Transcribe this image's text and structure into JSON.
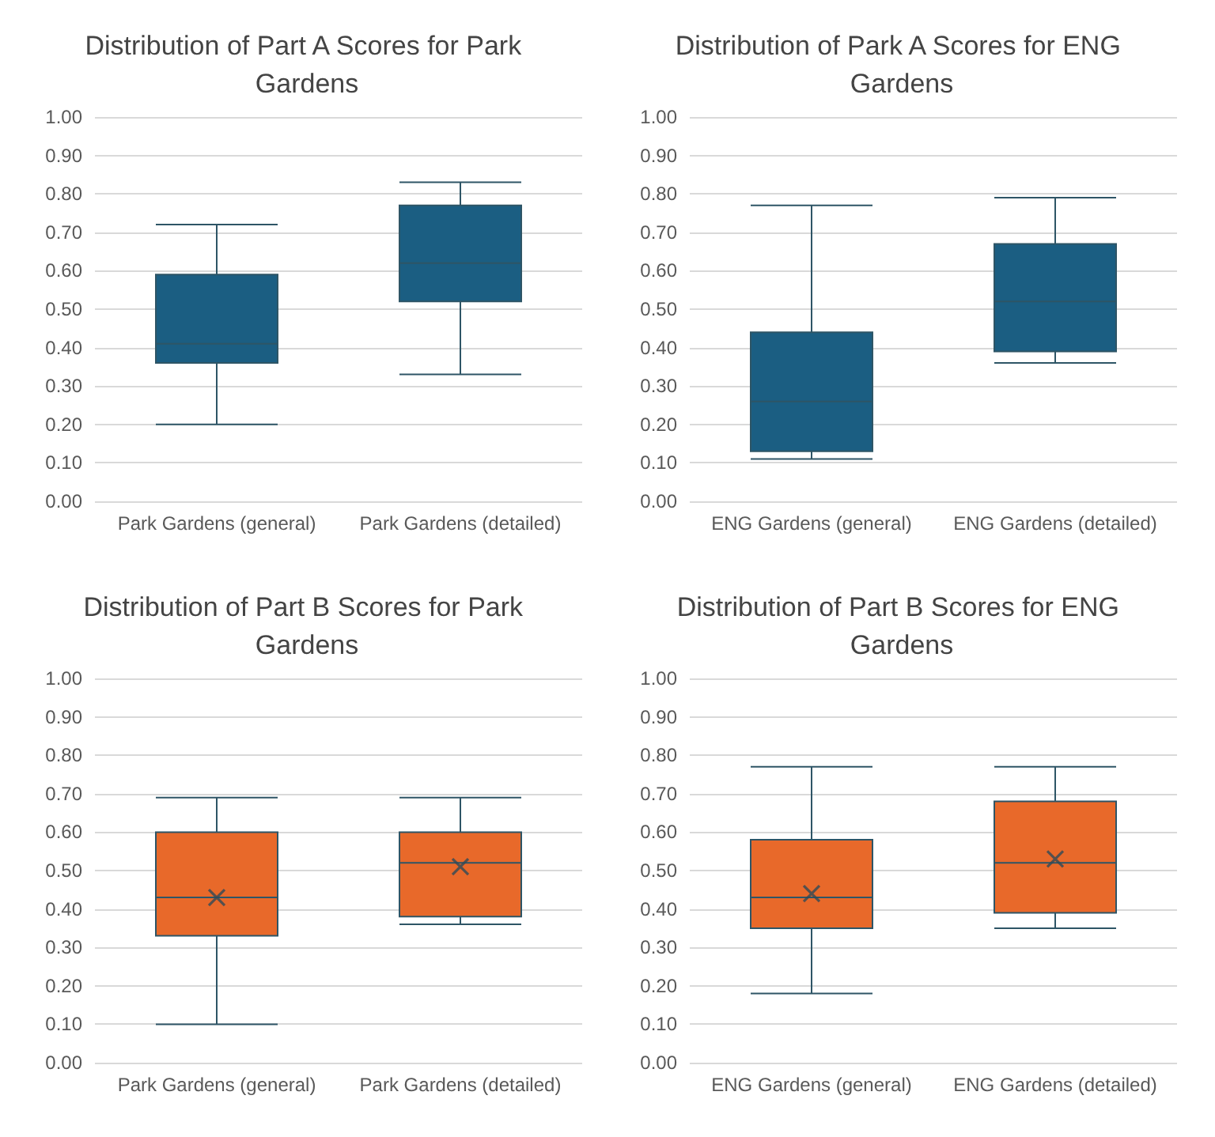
{
  "chart_data": [
    {
      "type": "box",
      "title": "Distribution of Part A Scores for Park Gardens",
      "categories": [
        "Park Gardens (general)",
        "Park Gardens (detailed)"
      ],
      "series": [
        {
          "color": "#1b5e82",
          "boxes": [
            {
              "low": 0.2,
              "q1": 0.36,
              "median": 0.41,
              "q3": 0.59,
              "high": 0.72
            },
            {
              "low": 0.33,
              "q1": 0.52,
              "median": 0.62,
              "q3": 0.77,
              "high": 0.83
            }
          ]
        }
      ],
      "ylim": [
        0,
        1
      ],
      "yticks": [
        {
          "value": 0,
          "label": "0.00"
        },
        {
          "value": 0.1,
          "label": "0.10"
        },
        {
          "value": 0.2,
          "label": "0.20"
        },
        {
          "value": 0.3,
          "label": "0.30"
        },
        {
          "value": 0.4,
          "label": "0.40"
        },
        {
          "value": 0.5,
          "label": "0.50"
        },
        {
          "value": 0.6,
          "label": "0.60"
        },
        {
          "value": 0.7,
          "label": "0.70"
        },
        {
          "value": 0.8,
          "label": "0.80"
        },
        {
          "value": 0.9,
          "label": "0.90"
        },
        {
          "value": 1,
          "label": "1.00"
        }
      ],
      "grid": "y"
    },
    {
      "type": "box",
      "title": "Distribution of Park A Scores for ENG Gardens",
      "categories": [
        "ENG Gardens (general)",
        "ENG Gardens (detailed)"
      ],
      "series": [
        {
          "color": "#1b5e82",
          "boxes": [
            {
              "low": 0.11,
              "q1": 0.13,
              "median": 0.26,
              "q3": 0.44,
              "high": 0.77
            },
            {
              "low": 0.36,
              "q1": 0.39,
              "median": 0.52,
              "q3": 0.67,
              "high": 0.79
            }
          ]
        }
      ],
      "ylim": [
        0,
        1
      ],
      "yticks": [
        {
          "value": 0,
          "label": "0.00"
        },
        {
          "value": 0.1,
          "label": "0.10"
        },
        {
          "value": 0.2,
          "label": "0.20"
        },
        {
          "value": 0.3,
          "label": "0.30"
        },
        {
          "value": 0.4,
          "label": "0.40"
        },
        {
          "value": 0.5,
          "label": "0.50"
        },
        {
          "value": 0.6,
          "label": "0.60"
        },
        {
          "value": 0.7,
          "label": "0.70"
        },
        {
          "value": 0.8,
          "label": "0.80"
        },
        {
          "value": 0.9,
          "label": "0.90"
        },
        {
          "value": 1,
          "label": "1.00"
        }
      ],
      "grid": "y"
    },
    {
      "type": "box",
      "title": "Distribution of Part B Scores for Park Gardens",
      "categories": [
        "Park Gardens (general)",
        "Park Gardens (detailed)"
      ],
      "series": [
        {
          "color": "#e8692a",
          "boxes": [
            {
              "low": 0.1,
              "q1": 0.33,
              "median": 0.43,
              "q3": 0.6,
              "high": 0.69,
              "mean": 0.43
            },
            {
              "low": 0.36,
              "q1": 0.38,
              "median": 0.52,
              "q3": 0.6,
              "high": 0.69,
              "mean": 0.51
            }
          ]
        }
      ],
      "ylim": [
        0,
        1
      ],
      "yticks": [
        {
          "value": 0,
          "label": "0.00"
        },
        {
          "value": 0.1,
          "label": "0.10"
        },
        {
          "value": 0.2,
          "label": "0.20"
        },
        {
          "value": 0.3,
          "label": "0.30"
        },
        {
          "value": 0.4,
          "label": "0.40"
        },
        {
          "value": 0.5,
          "label": "0.50"
        },
        {
          "value": 0.6,
          "label": "0.60"
        },
        {
          "value": 0.7,
          "label": "0.70"
        },
        {
          "value": 0.8,
          "label": "0.80"
        },
        {
          "value": 0.9,
          "label": "0.90"
        },
        {
          "value": 1,
          "label": "1.00"
        }
      ],
      "grid": "y"
    },
    {
      "type": "box",
      "title": "Distribution of Part B Scores for ENG Gardens",
      "categories": [
        "ENG Gardens (general)",
        "ENG Gardens (detailed)"
      ],
      "series": [
        {
          "color": "#e8692a",
          "boxes": [
            {
              "low": 0.18,
              "q1": 0.35,
              "median": 0.43,
              "q3": 0.58,
              "high": 0.77,
              "mean": 0.44
            },
            {
              "low": 0.35,
              "q1": 0.39,
              "median": 0.52,
              "q3": 0.68,
              "high": 0.77,
              "mean": 0.53
            }
          ]
        }
      ],
      "ylim": [
        0,
        1
      ],
      "yticks": [
        {
          "value": 0,
          "label": "0.00"
        },
        {
          "value": 0.1,
          "label": "0.10"
        },
        {
          "value": 0.2,
          "label": "0.20"
        },
        {
          "value": 0.3,
          "label": "0.30"
        },
        {
          "value": 0.4,
          "label": "0.40"
        },
        {
          "value": 0.5,
          "label": "0.50"
        },
        {
          "value": 0.6,
          "label": "0.60"
        },
        {
          "value": 0.7,
          "label": "0.70"
        },
        {
          "value": 0.8,
          "label": "0.80"
        },
        {
          "value": 0.9,
          "label": "0.90"
        },
        {
          "value": 1,
          "label": "1.00"
        }
      ],
      "grid": "y"
    }
  ]
}
